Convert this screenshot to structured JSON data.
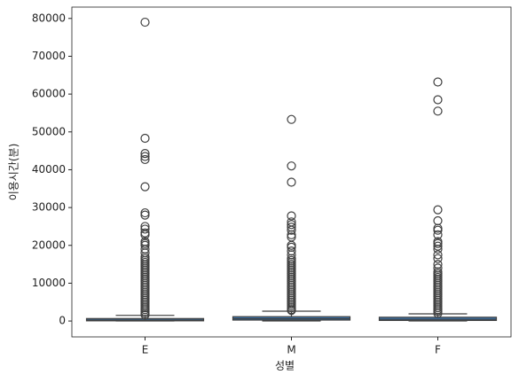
{
  "chart_data": {
    "type": "box",
    "xlabel": "성별",
    "ylabel": "이용시간(분)",
    "categories": [
      "E",
      "M",
      "F"
    ],
    "color": "#3a76af",
    "line_color": "#3f3f3f",
    "ylim": [
      -4200,
      83000
    ],
    "yticks": [
      0,
      10000,
      20000,
      30000,
      40000,
      50000,
      60000,
      70000,
      80000
    ],
    "boxes": [
      {
        "whislo": 0,
        "q1": 50,
        "med": 250,
        "q3": 650,
        "whishi": 1500,
        "fliers": [
          79000,
          48300,
          44300,
          43500,
          42700,
          35500,
          28600,
          28000,
          25000,
          24300,
          23300,
          22800,
          21000,
          20500,
          20000,
          19000,
          18000,
          17000,
          16500,
          16000,
          15500,
          15000,
          14500,
          14000,
          13500,
          13000,
          12500,
          12000,
          11500,
          11000,
          10500,
          10000,
          9500,
          9000,
          8500,
          8000,
          7500,
          7000,
          6500,
          6000,
          5500,
          5000,
          4500,
          4000,
          3500,
          3000,
          2500,
          2000,
          1600
        ]
      },
      {
        "whislo": 0,
        "q1": 250,
        "med": 600,
        "q3": 1150,
        "whishi": 2600,
        "fliers": [
          53300,
          41000,
          36700,
          27800,
          26200,
          25500,
          24800,
          24000,
          22800,
          22200,
          20000,
          19500,
          18500,
          17500,
          16500,
          16000,
          15500,
          15000,
          14500,
          14000,
          13500,
          13000,
          12500,
          12000,
          11500,
          11000,
          10500,
          10000,
          9500,
          9000,
          8500,
          8000,
          7500,
          7000,
          6500,
          6000,
          5500,
          5000,
          4500,
          4000,
          3500,
          3000,
          2800
        ]
      },
      {
        "whislo": 0,
        "q1": 150,
        "med": 450,
        "q3": 1000,
        "whishi": 1900,
        "fliers": [
          63200,
          58500,
          55500,
          29400,
          26500,
          24500,
          24000,
          22800,
          21000,
          20500,
          19800,
          19000,
          17500,
          16500,
          15000,
          14000,
          13000,
          12500,
          12000,
          11500,
          11000,
          10500,
          10000,
          9500,
          9000,
          8500,
          8000,
          7500,
          7000,
          6500,
          6000,
          5500,
          5000,
          4500,
          4000,
          3500,
          3000,
          2500,
          2000
        ]
      }
    ]
  }
}
